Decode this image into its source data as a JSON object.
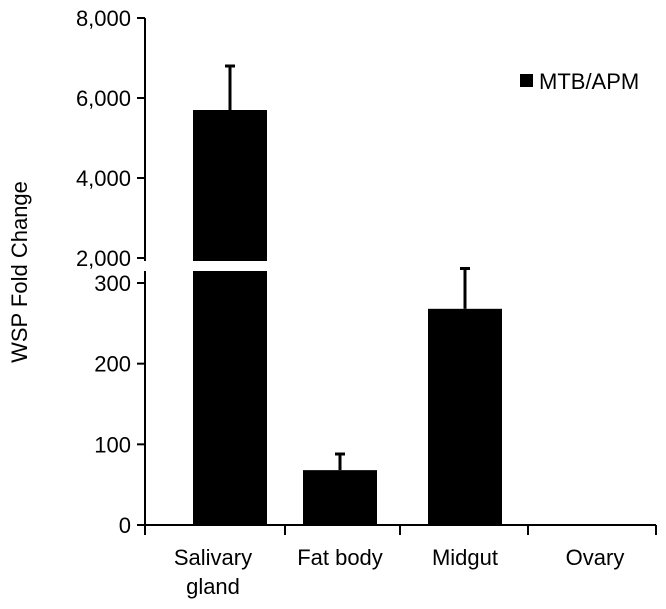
{
  "chart_data": {
    "type": "bar",
    "categories": [
      "Salivary gland",
      "Fat body",
      "Midgut",
      "Ovary"
    ],
    "category_lines": [
      [
        "Salivary",
        "gland"
      ],
      [
        "Fat body"
      ],
      [
        "Midgut"
      ],
      [
        "Ovary"
      ]
    ],
    "series": [
      {
        "name": "MTB/APM",
        "values": [
          5700,
          68,
          268,
          1
        ],
        "errors": [
          1100,
          20,
          50,
          1
        ],
        "color": "#000000"
      }
    ],
    "ylabel": "WSP Fold Change",
    "xlabel": "",
    "broken_axis": true,
    "upper_segment": {
      "ylim": [
        2000,
        8000
      ],
      "ticks": [
        2000,
        4000,
        6000,
        8000
      ],
      "tick_labels": [
        "2,000",
        "4,000",
        "6,000",
        "8,000"
      ]
    },
    "lower_segment": {
      "ylim": [
        0,
        320
      ],
      "ticks": [
        0,
        100,
        200,
        300
      ],
      "tick_labels": [
        "0",
        "100",
        "200",
        "300"
      ]
    },
    "legend_position": "top-right",
    "grid": false
  }
}
